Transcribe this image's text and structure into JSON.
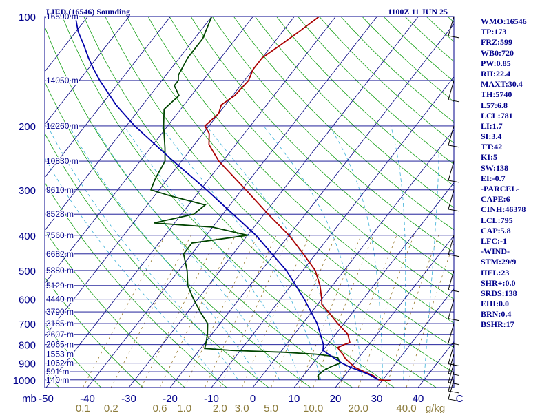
{
  "header": {
    "title": "LIED (16546) Sounding",
    "datetime": "1100Z 11 JUN 25"
  },
  "indices": [
    "WMO:16546",
    "TP:173",
    "FRZ:599",
    "WB0:720",
    "PW:0.85",
    "RH:22.4",
    "MAXT:30.4",
    "TH:5740",
    "L57:6.8",
    "LCL:781",
    "LI:1.7",
    "SI:3.4",
    "TT:42",
    "KI:5",
    "SW:138",
    "EI:-0.7",
    "-PARCEL-",
    "CAPE:6",
    "CINH:46378",
    "LCL:795",
    "CAP:5.8",
    "LFC:-1",
    "-WIND-",
    "STM:29/9",
    "HEL:23",
    "SHR+:0.0",
    "SRDS:138",
    "EHI:0.0",
    "BRN:0.4",
    "BSHR:17"
  ],
  "colors": {
    "isobar": "#00008b",
    "isotherm": "#000080",
    "dry_adiabat": "#16a016",
    "moist_adiabat": "#3ab0d8",
    "mixing_ratio": "#8b6914",
    "temperature": "#aa0000",
    "dewpoint": "#004400",
    "parcel": "#0000aa",
    "axis_text_left": "#00008b",
    "mixing_ratio_text": "#8b7a3a",
    "barbs": "#000000"
  },
  "chart_data": {
    "type": "skew-t",
    "pressure_axis": {
      "labels": [
        "100",
        "200",
        "300",
        "400",
        "500",
        "600",
        "700",
        "800",
        "900",
        "1000"
      ],
      "values": [
        100,
        200,
        300,
        400,
        500,
        600,
        700,
        800,
        900,
        1000
      ],
      "unit_label": "mb"
    },
    "height_labels": [
      {
        "p": 100,
        "label": "16590 m"
      },
      {
        "p": 150,
        "label": "14050 m"
      },
      {
        "p": 200,
        "label": "12260 m"
      },
      {
        "p": 250,
        "label": "10830 m"
      },
      {
        "p": 300,
        "label": "9610 m"
      },
      {
        "p": 350,
        "label": "8528 m"
      },
      {
        "p": 400,
        "label": "7560 m"
      },
      {
        "p": 450,
        "label": "6682 m"
      },
      {
        "p": 500,
        "label": "5880 m"
      },
      {
        "p": 550,
        "label": "5129 m"
      },
      {
        "p": 600,
        "label": "4440 m"
      },
      {
        "p": 650,
        "label": "3790 m"
      },
      {
        "p": 700,
        "label": "3185 m"
      },
      {
        "p": 750,
        "label": "2607 m"
      },
      {
        "p": 800,
        "label": "2065 m"
      },
      {
        "p": 850,
        "label": "1553 m"
      },
      {
        "p": 900,
        "label": "1062 m"
      },
      {
        "p": 950,
        "label": "591 m"
      },
      {
        "p": 1000,
        "label": "140 m"
      }
    ],
    "temperature_axis": {
      "labels": [
        "-50",
        "-40",
        "-30",
        "-20",
        "-10",
        "0",
        "10",
        "20",
        "30",
        "40",
        "C"
      ],
      "values": [
        -50,
        -40,
        -30,
        -20,
        -10,
        0,
        10,
        20,
        30,
        40,
        50
      ]
    },
    "mixing_ratio_axis": {
      "labels": [
        "0.1",
        "0.2",
        "0.6",
        "1.0",
        "2.0",
        "3.0",
        "5.0",
        "10.0",
        "20.0",
        "40.0",
        "g/kg"
      ],
      "values": [
        0.1,
        0.2,
        0.6,
        1.0,
        2.0,
        3.0,
        5.0,
        10.0,
        20.0,
        40.0,
        null
      ]
    },
    "series": [
      {
        "key": "temperature",
        "points": [
          [
            1005,
            32
          ],
          [
            1000,
            29
          ],
          [
            975,
            27
          ],
          [
            950,
            24
          ],
          [
            925,
            21
          ],
          [
            900,
            19
          ],
          [
            875,
            17
          ],
          [
            850,
            15.5
          ],
          [
            830,
            14
          ],
          [
            815,
            13
          ],
          [
            800,
            14
          ],
          [
            790,
            15
          ],
          [
            770,
            14
          ],
          [
            750,
            13
          ],
          [
            700,
            8.5
          ],
          [
            650,
            4
          ],
          [
            620,
            1
          ],
          [
            600,
            0
          ],
          [
            550,
            -3
          ],
          [
            500,
            -7
          ],
          [
            450,
            -13
          ],
          [
            400,
            -20
          ],
          [
            350,
            -29
          ],
          [
            300,
            -39
          ],
          [
            250,
            -51
          ],
          [
            225,
            -56.5
          ],
          [
            210,
            -58.5
          ],
          [
            200,
            -61
          ],
          [
            185,
            -60
          ],
          [
            175,
            -61
          ],
          [
            165,
            -59.5
          ],
          [
            150,
            -59
          ],
          [
            140,
            -60
          ],
          [
            130,
            -60
          ],
          [
            120,
            -58
          ],
          [
            110,
            -56
          ],
          [
            100,
            -54
          ]
        ]
      },
      {
        "key": "dewpoint",
        "points": [
          [
            1000,
            14.5
          ],
          [
            970,
            13.5
          ],
          [
            940,
            14
          ],
          [
            920,
            15
          ],
          [
            900,
            16.5
          ],
          [
            870,
            15
          ],
          [
            860,
            13
          ],
          [
            850,
            9
          ],
          [
            840,
            1
          ],
          [
            830,
            -12
          ],
          [
            820,
            -19
          ],
          [
            800,
            -19.5
          ],
          [
            750,
            -21
          ],
          [
            700,
            -23
          ],
          [
            650,
            -27
          ],
          [
            600,
            -31
          ],
          [
            550,
            -35
          ],
          [
            500,
            -38
          ],
          [
            450,
            -42
          ],
          [
            420,
            -42
          ],
          [
            400,
            -30
          ],
          [
            380,
            -40
          ],
          [
            370,
            -55
          ],
          [
            350,
            -47
          ],
          [
            330,
            -46
          ],
          [
            310,
            -57
          ],
          [
            300,
            -62
          ],
          [
            280,
            -63
          ],
          [
            250,
            -64
          ],
          [
            230,
            -66.5
          ],
          [
            200,
            -71
          ],
          [
            180,
            -74
          ],
          [
            165,
            -73
          ],
          [
            155,
            -76
          ],
          [
            150,
            -76
          ],
          [
            145,
            -77
          ],
          [
            130,
            -78
          ],
          [
            115,
            -78
          ],
          [
            100,
            -80
          ]
        ]
      },
      {
        "key": "parcel",
        "points": [
          [
            1000,
            29
          ],
          [
            970,
            26
          ],
          [
            950,
            23.5
          ],
          [
            925,
            20
          ],
          [
            900,
            17
          ],
          [
            875,
            14.5
          ],
          [
            850,
            12
          ],
          [
            830,
            10
          ],
          [
            800,
            9
          ],
          [
            700,
            3.5
          ],
          [
            600,
            -4.2
          ],
          [
            500,
            -14
          ],
          [
            400,
            -28
          ],
          [
            350,
            -37.5
          ],
          [
            300,
            -48.5
          ],
          [
            250,
            -62
          ],
          [
            200,
            -78
          ],
          [
            175,
            -86.5
          ],
          [
            150,
            -95
          ],
          [
            140,
            -98.5
          ],
          [
            130,
            -102
          ],
          [
            120,
            -105.5
          ],
          [
            110,
            -109.5
          ],
          [
            100,
            -113
          ]
        ]
      }
    ],
    "wind_barbs": [
      {
        "p": 1000
      },
      {
        "p": 950
      },
      {
        "p": 900
      },
      {
        "p": 850
      },
      {
        "p": 800
      },
      {
        "p": 700
      },
      {
        "p": 600
      },
      {
        "p": 500
      },
      {
        "p": 400
      },
      {
        "p": 300
      },
      {
        "p": 250
      },
      {
        "p": 200
      },
      {
        "p": 150
      },
      {
        "p": 100
      }
    ]
  }
}
